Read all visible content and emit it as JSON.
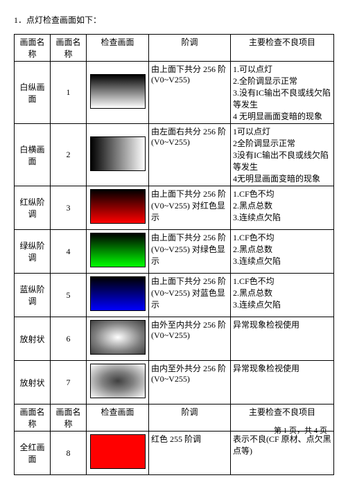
{
  "title": "1．点灯检查画面如下：",
  "headers": {
    "name1": "画面名称",
    "name2": "画面名称",
    "image": "检查画面",
    "gradation": "阶调",
    "items": "主要检查不良项目"
  },
  "rows1": [
    {
      "name": "白纵画面",
      "num": "1",
      "swatch_style": "background: linear-gradient(to bottom, #000000, #ffffff);",
      "gradation": "由上面下共分 256 阶 (V0~V255)",
      "items": "1.可以点灯\n2.全阶调显示正常\n3.没有IC输出不良或线欠陷等发生\n4 无明显画面变暗的现象"
    },
    {
      "name": "白横画面",
      "num": "2",
      "swatch_style": "background: linear-gradient(to right, #000000, #ffffff);",
      "gradation": "由左面右共分 256 阶 (V0~V255)",
      "items": "1可以点灯\n2全阶调显示正常\n3没有IC输出不良或线欠陷等发生\n4无明显画面变暗的现象"
    },
    {
      "name": "红纵阶调",
      "num": "3",
      "swatch_style": "background: linear-gradient(to bottom, #000000, #ff0000);",
      "gradation": "由上面下共分 256 阶 (V0~V255) 对红色显示",
      "items": "1.CF色不均\n2.黑点总数\n3.连续点欠陷"
    },
    {
      "name": "绿纵阶调",
      "num": "4",
      "swatch_style": "background: linear-gradient(to bottom, #000000, #00ff00);",
      "gradation": "由上面下共分 256 阶 (V0~V255) 对绿色显示",
      "items": "1.CF色不均\n2.黑点总数\n3.连续点欠陷"
    },
    {
      "name": "蓝纵阶调",
      "num": "5",
      "swatch_style": "background: linear-gradient(to bottom, #000000, #0000ff);",
      "gradation": "由上面下共分 256 阶 (V0~V255) 对蓝色显示",
      "items": "1.CF色不均\n2.黑点总数\n3.连续点欠陷"
    },
    {
      "name": "放射状",
      "num": "6",
      "swatch_style": "background: radial-gradient(ellipse at center, #ffffff 0%, #808080 60%, #404040 100%);",
      "gradation": "由外至内共分 256 阶 (V0~V255)",
      "items": "异常现象检视使用"
    },
    {
      "name": "放射状",
      "num": "7",
      "swatch_style": "background: radial-gradient(ellipse at center, #404040 0%, #808080 40%, #ffffff 100%);",
      "gradation": "由内至外共分 256 阶 (V0~V255)",
      "items": "异常现象检视使用"
    }
  ],
  "rows2": [
    {
      "name": "全红画面",
      "num": "8",
      "swatch_style": "background: #ff0000;",
      "gradation": "红色 255 阶调",
      "items": "表示不良(CF 原材、点欠黑点等)"
    }
  ],
  "footer": "第 1 页，共 4 页"
}
